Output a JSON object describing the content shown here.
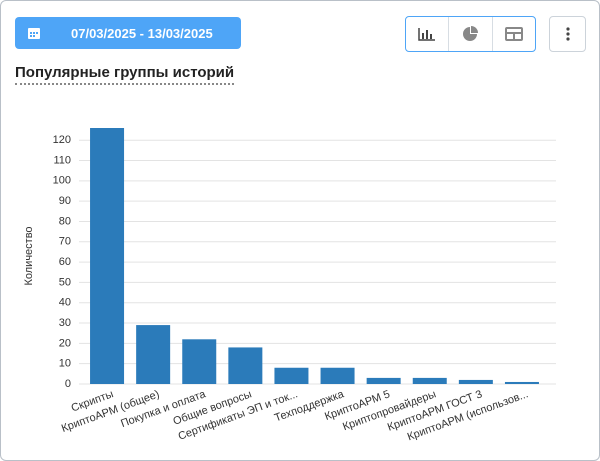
{
  "toolbar": {
    "date_range": "07/03/2025 - 13/03/2025"
  },
  "chart_data": {
    "type": "bar",
    "title": "Популярные группы историй",
    "y_label": "Количество",
    "categories": [
      "Скрипты",
      "КриптоАРМ (общее)",
      "Покупка и оплата",
      "Общие вопросы",
      "Сертификаты ЭП и ток...",
      "Техподдержка",
      "КриптоАРМ 5",
      "Криптопровайдеры",
      "КриптоАРМ ГОСТ 3",
      "КриптоАРМ (использов..."
    ],
    "values": [
      126,
      29,
      22,
      18,
      8,
      8,
      3,
      3,
      2,
      1
    ],
    "color": "#2b7bba",
    "ylim": [
      0,
      126
    ],
    "yticks": [
      0,
      10,
      20,
      30,
      40,
      50,
      60,
      70,
      80,
      90,
      100,
      110,
      120
    ],
    "grid": true
  }
}
